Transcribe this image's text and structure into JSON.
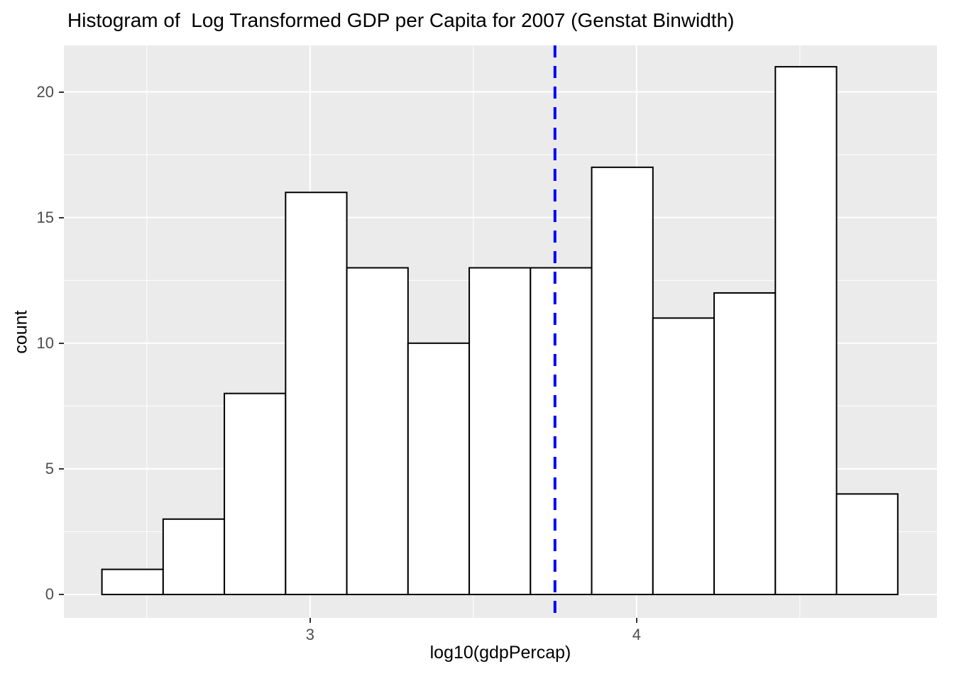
{
  "page": {
    "background": "#FFFFFF"
  },
  "chart_data": {
    "type": "bar",
    "subtype": "histogram",
    "title": "Histogram of  Log Transformed GDP per Capita for 2007 (Genstat Binwidth)",
    "xlabel": "log10(gdpPercap)",
    "ylabel": "count",
    "bin_width": 0.1875,
    "bin_edges": [
      2.3625,
      2.55,
      2.7375,
      2.925,
      3.1125,
      3.3,
      3.4875,
      3.675,
      3.8625,
      4.05,
      4.2375,
      4.425,
      4.6125,
      4.8
    ],
    "counts": [
      1,
      3,
      8,
      16,
      13,
      10,
      13,
      13,
      17,
      11,
      12,
      21,
      4
    ],
    "total_count": 142,
    "x_ticks": [
      3,
      4
    ],
    "y_ticks": [
      0,
      5,
      10,
      15,
      20
    ],
    "x_minor_gridlines": [
      2.5,
      3.5,
      4.5
    ],
    "y_minor_gridlines": [
      2.5,
      7.5,
      12.5,
      17.5
    ],
    "xlim": [
      2.246,
      4.92
    ],
    "ylim": [
      -0.93,
      21.85
    ],
    "grid": true,
    "legend": "none",
    "vline": {
      "x": 3.75,
      "style": "dashed",
      "color": "#0000FF",
      "width": 4
    },
    "colors": {
      "panel_bg": "#EBEBEB",
      "grid": "#FFFFFF",
      "bar_fill": "#FFFFFF",
      "bar_stroke": "#000000",
      "tick_label": "#4D4D4D",
      "tick_mark": "#333333",
      "title": "#000000"
    }
  }
}
